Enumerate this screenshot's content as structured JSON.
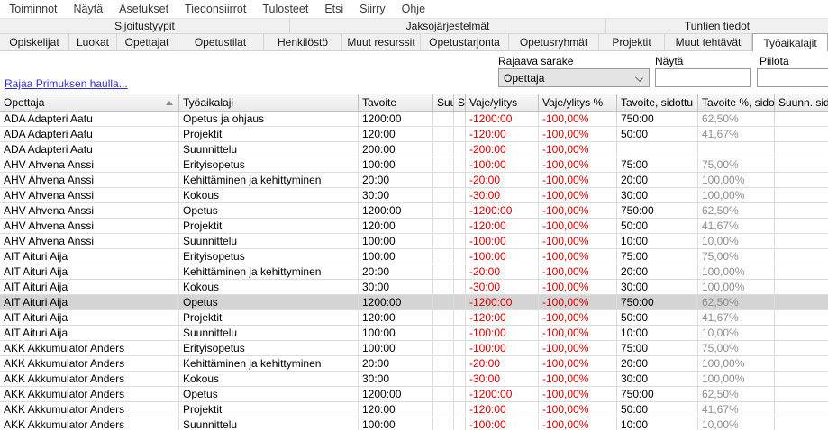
{
  "menu": {
    "items": [
      "Toiminnot",
      "Näytä",
      "Asetukset",
      "Tiedonsiirrot",
      "Tulosteet",
      "Etsi",
      "Siirry",
      "Ohje"
    ]
  },
  "group_tabs": {
    "items": [
      "Sijoitustyypit",
      "Jaksojärjestelmät",
      "Tuntien tiedot"
    ],
    "active": "Tuntien tiedot"
  },
  "tabs": {
    "items": [
      "Opiskelijat",
      "Luokat",
      "Opettajat",
      "Opetustilat",
      "Henkilöstö",
      "Muut resurssit",
      "Opetustarjonta",
      "Opetusryhmät",
      "Projektit",
      "Muut tehtävät",
      "Työaikalajit"
    ],
    "active": "Työaikalajit"
  },
  "filter": {
    "link": "Rajaa Primuksen haulla...",
    "rajaava_sarake": {
      "label": "Rajaava sarake",
      "value": "Opettaja"
    },
    "nayta": {
      "label": "Näytä",
      "value": ""
    },
    "piilota": {
      "label": "Piilota",
      "value": ""
    }
  },
  "table": {
    "columns": [
      "Opettaja",
      "Työaikalaji",
      "Tavoite",
      "Suu",
      "Si",
      "Vaje/ylitys",
      "Vaje/ylitys %",
      "Tavoite, sidottu",
      "Tavoite %, sidot",
      "Suunn. sidot"
    ],
    "sorted_column": "Opettaja",
    "sort_direction": "ascending",
    "selected_row_index": 12,
    "rows": [
      [
        "ADA Adapteri Aatu",
        "Opetus ja ohjaus",
        "1200:00",
        "",
        "",
        "-1200:00",
        "-100,00%",
        "750:00",
        "62,50%",
        ""
      ],
      [
        "ADA Adapteri Aatu",
        "Projektit",
        "120:00",
        "",
        "",
        "-120:00",
        "-100,00%",
        "50:00",
        "41,67%",
        ""
      ],
      [
        "ADA Adapteri Aatu",
        "Suunnittelu",
        "200:00",
        "",
        "",
        "-200:00",
        "-100,00%",
        "",
        "",
        ""
      ],
      [
        "AHV Ahvena Anssi",
        "Erityisopetus",
        "100:00",
        "",
        "",
        "-100:00",
        "-100,00%",
        "75:00",
        "75,00%",
        ""
      ],
      [
        "AHV Ahvena Anssi",
        "Kehittäminen ja kehittyminen",
        "20:00",
        "",
        "",
        "-20:00",
        "-100,00%",
        "20:00",
        "100,00%",
        ""
      ],
      [
        "AHV Ahvena Anssi",
        "Kokous",
        "30:00",
        "",
        "",
        "-30:00",
        "-100,00%",
        "30:00",
        "100,00%",
        ""
      ],
      [
        "AHV Ahvena Anssi",
        "Opetus",
        "1200:00",
        "",
        "",
        "-1200:00",
        "-100,00%",
        "750:00",
        "62,50%",
        ""
      ],
      [
        "AHV Ahvena Anssi",
        "Projektit",
        "120:00",
        "",
        "",
        "-120:00",
        "-100,00%",
        "50:00",
        "41,67%",
        ""
      ],
      [
        "AHV Ahvena Anssi",
        "Suunnittelu",
        "100:00",
        "",
        "",
        "-100:00",
        "-100,00%",
        "10:00",
        "10,00%",
        ""
      ],
      [
        "AIT Aituri Aija",
        "Erityisopetus",
        "100:00",
        "",
        "",
        "-100:00",
        "-100,00%",
        "75:00",
        "75,00%",
        ""
      ],
      [
        "AIT Aituri Aija",
        "Kehittäminen ja kehittyminen",
        "20:00",
        "",
        "",
        "-20:00",
        "-100,00%",
        "20:00",
        "100,00%",
        ""
      ],
      [
        "AIT Aituri Aija",
        "Kokous",
        "30:00",
        "",
        "",
        "-30:00",
        "-100,00%",
        "30:00",
        "100,00%",
        ""
      ],
      [
        "AIT Aituri Aija",
        "Opetus",
        "1200:00",
        "",
        "",
        "-1200:00",
        "-100,00%",
        "750:00",
        "62,50%",
        ""
      ],
      [
        "AIT Aituri Aija",
        "Projektit",
        "120:00",
        "",
        "",
        "-120:00",
        "-100,00%",
        "50:00",
        "41,67%",
        ""
      ],
      [
        "AIT Aituri Aija",
        "Suunnittelu",
        "100:00",
        "",
        "",
        "-100:00",
        "-100,00%",
        "10:00",
        "10,00%",
        ""
      ],
      [
        "AKK Akkumulator Anders",
        "Erityisopetus",
        "100:00",
        "",
        "",
        "-100:00",
        "-100,00%",
        "75:00",
        "75,00%",
        ""
      ],
      [
        "AKK Akkumulator Anders",
        "Kehittäminen ja kehittyminen",
        "20:00",
        "",
        "",
        "-20:00",
        "-100,00%",
        "20:00",
        "100,00%",
        ""
      ],
      [
        "AKK Akkumulator Anders",
        "Kokous",
        "30:00",
        "",
        "",
        "-30:00",
        "-100,00%",
        "30:00",
        "100,00%",
        ""
      ],
      [
        "AKK Akkumulator Anders",
        "Opetus",
        "1200:00",
        "",
        "",
        "-1200:00",
        "-100,00%",
        "750:00",
        "62,50%",
        ""
      ],
      [
        "AKK Akkumulator Anders",
        "Projektit",
        "120:00",
        "",
        "",
        "-120:00",
        "-100,00%",
        "50:00",
        "41,67%",
        ""
      ],
      [
        "AKK Akkumulator Anders",
        "Suunnittelu",
        "100:00",
        "",
        "",
        "-100:00",
        "-100,00%",
        "10:00",
        "10,00%",
        ""
      ]
    ]
  },
  "colors": {
    "negative_value": "#d80000",
    "muted_value": "#8e8e8e",
    "link": "#3333cc",
    "selected_row_bg": "#d4d4d4",
    "tab_bar_bg": "#f0f0f0"
  }
}
